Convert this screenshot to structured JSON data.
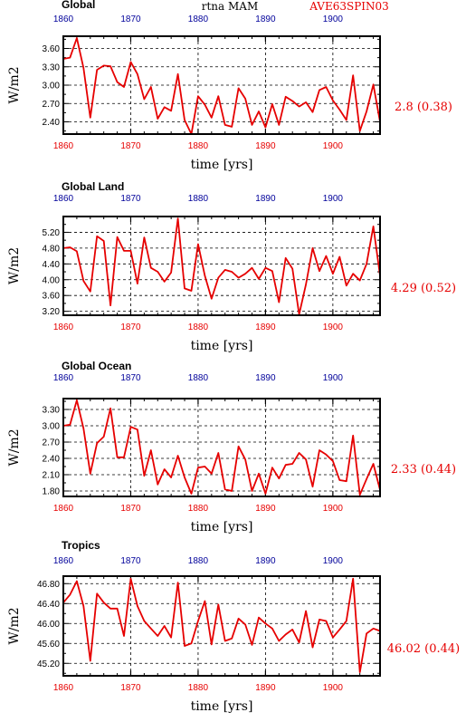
{
  "header": {
    "center_title": "rtna MAM",
    "right_title": "AVE63SPIN03"
  },
  "colors": {
    "line": "#e60000",
    "bottom_ticks": "#e60000",
    "top_ticks": "#00009a",
    "frame": "#000000"
  },
  "chart_data": [
    {
      "type": "line",
      "title": "Global",
      "xlabel": "time [yrs]",
      "ylabel": "W/m2",
      "xlim": [
        1860,
        1907
      ],
      "ylim": [
        2.2,
        3.8
      ],
      "yticks": [
        "3.60",
        "3.30",
        "3.00",
        "2.70",
        "2.40"
      ],
      "xticks_bottom": [
        "1860",
        "1870",
        "1880",
        "1890",
        "1900"
      ],
      "xticks_top": [
        "1860",
        "1870",
        "1880",
        "1890",
        "1900"
      ],
      "grid": true,
      "stat": "2.8 (0.38)",
      "x": [
        1860,
        1861,
        1862,
        1863,
        1864,
        1865,
        1866,
        1867,
        1868,
        1869,
        1870,
        1871,
        1872,
        1873,
        1874,
        1875,
        1876,
        1877,
        1878,
        1879,
        1880,
        1881,
        1882,
        1883,
        1884,
        1885,
        1886,
        1887,
        1888,
        1889,
        1890,
        1891,
        1892,
        1893,
        1894,
        1895,
        1896,
        1897,
        1898,
        1899,
        1900,
        1901,
        1902,
        1903,
        1904,
        1905,
        1906,
        1907
      ],
      "values": [
        3.43,
        3.45,
        3.77,
        3.28,
        2.47,
        3.25,
        3.32,
        3.31,
        3.05,
        2.97,
        3.38,
        3.18,
        2.77,
        2.97,
        2.45,
        2.64,
        2.58,
        3.18,
        2.43,
        2.2,
        2.82,
        2.68,
        2.47,
        2.82,
        2.35,
        2.32,
        2.95,
        2.78,
        2.35,
        2.57,
        2.31,
        2.69,
        2.35,
        2.81,
        2.74,
        2.65,
        2.72,
        2.56,
        2.92,
        2.97,
        2.75,
        2.6,
        2.43,
        3.16,
        2.25,
        2.57,
        3.01,
        2.4
      ]
    },
    {
      "type": "line",
      "title": "Global Land",
      "xlabel": "time [yrs]",
      "ylabel": "W/m2",
      "xlim": [
        1860,
        1907
      ],
      "ylim": [
        3.1,
        5.6
      ],
      "yticks": [
        "5.20",
        "4.80",
        "4.40",
        "4.00",
        "3.60",
        "3.20"
      ],
      "xticks_bottom": [
        "1860",
        "1870",
        "1880",
        "1890",
        "1900"
      ],
      "xticks_top": [
        "1860",
        "1870",
        "1880",
        "1890",
        "1900"
      ],
      "grid": true,
      "stat": "4.29 (0.52)",
      "x": [
        1860,
        1861,
        1862,
        1863,
        1864,
        1865,
        1866,
        1867,
        1868,
        1869,
        1870,
        1871,
        1872,
        1873,
        1874,
        1875,
        1876,
        1877,
        1878,
        1879,
        1880,
        1881,
        1882,
        1883,
        1884,
        1885,
        1886,
        1887,
        1888,
        1889,
        1890,
        1891,
        1892,
        1893,
        1894,
        1895,
        1896,
        1897,
        1898,
        1899,
        1900,
        1901,
        1902,
        1903,
        1904,
        1905,
        1906,
        1907
      ],
      "values": [
        4.8,
        4.82,
        4.72,
        3.97,
        3.7,
        5.1,
        4.98,
        3.35,
        5.08,
        4.73,
        4.73,
        3.9,
        5.07,
        4.3,
        4.2,
        3.95,
        4.18,
        5.55,
        3.78,
        3.72,
        4.9,
        4.1,
        3.52,
        4.05,
        4.25,
        4.2,
        4.05,
        4.15,
        4.3,
        4.02,
        4.3,
        4.22,
        3.43,
        4.55,
        4.28,
        3.12,
        3.88,
        4.8,
        4.22,
        4.6,
        4.15,
        4.58,
        3.85,
        4.15,
        3.98,
        4.4,
        5.35,
        4.1
      ]
    },
    {
      "type": "line",
      "title": "Global Ocean",
      "xlabel": "time [yrs]",
      "ylabel": "W/m2",
      "xlim": [
        1860,
        1907
      ],
      "ylim": [
        1.7,
        3.5
      ],
      "yticks": [
        "3.30",
        "3.00",
        "2.70",
        "2.40",
        "2.10",
        "1.80"
      ],
      "xticks_bottom": [
        "1860",
        "1870",
        "1880",
        "1890",
        "1900"
      ],
      "xticks_top": [
        "1860",
        "1870",
        "1880",
        "1890",
        "1900"
      ],
      "grid": true,
      "stat": "2.33 (0.44)",
      "x": [
        1860,
        1861,
        1862,
        1863,
        1864,
        1865,
        1866,
        1867,
        1868,
        1869,
        1870,
        1871,
        1872,
        1873,
        1874,
        1875,
        1876,
        1877,
        1878,
        1879,
        1880,
        1881,
        1882,
        1883,
        1884,
        1885,
        1886,
        1887,
        1888,
        1889,
        1890,
        1891,
        1892,
        1893,
        1894,
        1895,
        1896,
        1897,
        1898,
        1899,
        1900,
        1901,
        1902,
        1903,
        1904,
        1905,
        1906,
        1907
      ],
      "values": [
        3.0,
        3.02,
        3.47,
        2.95,
        2.12,
        2.68,
        2.8,
        3.32,
        2.42,
        2.42,
        2.98,
        2.93,
        2.08,
        2.55,
        1.92,
        2.2,
        2.05,
        2.45,
        2.05,
        1.75,
        2.23,
        2.25,
        2.12,
        2.5,
        1.83,
        1.8,
        2.62,
        2.38,
        1.8,
        2.12,
        1.75,
        2.23,
        2.03,
        2.28,
        2.3,
        2.5,
        2.38,
        1.88,
        2.55,
        2.47,
        2.35,
        2.0,
        1.98,
        2.82,
        1.73,
        2.02,
        2.3,
        1.82
      ]
    },
    {
      "type": "line",
      "title": "Tropics",
      "xlabel": "time [yrs]",
      "ylabel": "W/m2",
      "xlim": [
        1860,
        1907
      ],
      "ylim": [
        44.95,
        46.95
      ],
      "yticks": [
        "46.80",
        "46.40",
        "46.00",
        "45.60",
        "45.20"
      ],
      "xticks_bottom": [
        "1860",
        "1870",
        "1880",
        "1890",
        "1900"
      ],
      "xticks_top": [
        "1860",
        "1870",
        "1880",
        "1890",
        "1900"
      ],
      "grid": true,
      "stat": "46.02 (0.44)",
      "x": [
        1860,
        1861,
        1862,
        1863,
        1864,
        1865,
        1866,
        1867,
        1868,
        1869,
        1870,
        1871,
        1872,
        1873,
        1874,
        1875,
        1876,
        1877,
        1878,
        1879,
        1880,
        1881,
        1882,
        1883,
        1884,
        1885,
        1886,
        1887,
        1888,
        1889,
        1890,
        1891,
        1892,
        1893,
        1894,
        1895,
        1896,
        1897,
        1898,
        1899,
        1900,
        1901,
        1902,
        1903,
        1904,
        1905,
        1906,
        1907
      ],
      "values": [
        46.42,
        46.58,
        46.85,
        46.35,
        45.25,
        46.6,
        46.42,
        46.3,
        46.3,
        45.75,
        46.9,
        46.35,
        46.05,
        45.9,
        45.75,
        45.95,
        45.72,
        46.82,
        45.55,
        45.6,
        46.05,
        46.45,
        45.58,
        46.38,
        45.65,
        45.7,
        46.1,
        45.98,
        45.57,
        46.12,
        46.0,
        45.9,
        45.65,
        45.78,
        45.88,
        45.62,
        46.25,
        45.52,
        46.08,
        46.05,
        45.72,
        45.88,
        46.05,
        46.9,
        45.02,
        45.8,
        45.9,
        45.85
      ]
    }
  ]
}
